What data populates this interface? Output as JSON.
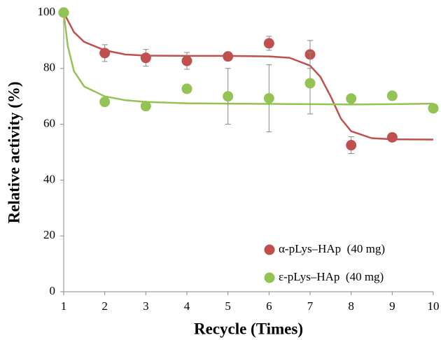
{
  "chart_data": {
    "type": "scatter",
    "xlabel": "Recycle (Times)",
    "ylabel": "Relative activity (%)",
    "xlim": [
      1,
      10
    ],
    "xticks": [
      1,
      2,
      3,
      4,
      5,
      6,
      7,
      8,
      9,
      10
    ],
    "ylim": [
      0,
      100
    ],
    "yticks": [
      0,
      20,
      40,
      60,
      80,
      100
    ],
    "legend": "bottom-right",
    "series": [
      {
        "name": "α-pLys–HAp  (40 mg)",
        "color": "#c0504d",
        "x": [
          1,
          2,
          3,
          4,
          5,
          6,
          7,
          8,
          9
        ],
        "values": [
          100,
          85.5,
          83.8,
          82.7,
          84.3,
          89,
          85,
          52.5,
          55.3
        ],
        "errors": [
          null,
          3,
          3,
          3,
          null,
          2.5,
          5,
          3,
          null
        ],
        "fit_x": [
          1,
          1.25,
          1.5,
          2,
          2.5,
          3,
          4,
          5,
          6,
          6.5,
          7,
          7.25,
          7.5,
          7.75,
          8,
          8.5,
          9,
          10
        ],
        "fit": [
          100,
          93,
          89.5,
          86.5,
          85,
          84.6,
          84.5,
          84.5,
          84.3,
          83.8,
          81,
          77,
          70,
          62,
          57.5,
          55,
          54.6,
          54.5
        ]
      },
      {
        "name": "ε-pLys–HAp  (40 mg)",
        "color": "#92c353",
        "x": [
          1,
          2,
          3,
          4,
          5,
          6,
          7,
          8,
          9,
          10
        ],
        "values": [
          100,
          68,
          66.5,
          72.7,
          70,
          69.3,
          74.7,
          69.2,
          70.2,
          65.7
        ],
        "errors": [
          null,
          null,
          1.5,
          null,
          10,
          12,
          11,
          null,
          null,
          null
        ],
        "fit_x": [
          1,
          1.1,
          1.25,
          1.5,
          2,
          2.5,
          3,
          4,
          5,
          6,
          7,
          8,
          9,
          10
        ],
        "fit": [
          100,
          88,
          79,
          73.5,
          70,
          68.6,
          68,
          67.5,
          67.4,
          67.3,
          67.2,
          67.1,
          67.2,
          67.4
        ]
      }
    ]
  }
}
